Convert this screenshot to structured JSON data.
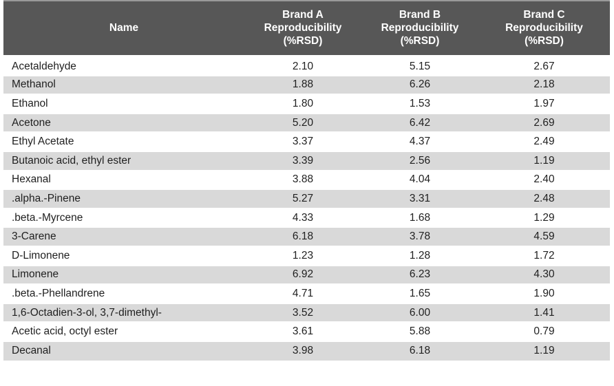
{
  "chart_data": {
    "type": "table",
    "columns": [
      {
        "label": "Name"
      },
      {
        "label": "Brand A\nReproducibility\n(%RSD)"
      },
      {
        "label": "Brand B\nReproducibility\n(%RSD)"
      },
      {
        "label": "Brand C\nReproducibility\n(%RSD)"
      }
    ],
    "rows": [
      {
        "name": "Acetaldehyde",
        "values": [
          "2.10",
          "5.15",
          "2.67"
        ]
      },
      {
        "name": "Methanol",
        "values": [
          "1.88",
          "6.26",
          "2.18"
        ]
      },
      {
        "name": "Ethanol",
        "values": [
          "1.80",
          "1.53",
          "1.97"
        ]
      },
      {
        "name": "Acetone",
        "values": [
          "5.20",
          "6.42",
          "2.69"
        ]
      },
      {
        "name": "Ethyl Acetate",
        "values": [
          "3.37",
          "4.37",
          "2.49"
        ]
      },
      {
        "name": "Butanoic acid, ethyl ester",
        "values": [
          "3.39",
          "2.56",
          "1.19"
        ]
      },
      {
        "name": "Hexanal",
        "values": [
          "3.88",
          "4.04",
          "2.40"
        ]
      },
      {
        "name": ".alpha.-Pinene",
        "values": [
          "5.27",
          "3.31",
          "2.48"
        ]
      },
      {
        "name": ".beta.-Myrcene",
        "values": [
          "4.33",
          "1.68",
          "1.29"
        ]
      },
      {
        "name": "3-Carene",
        "values": [
          "6.18",
          "3.78",
          "4.59"
        ]
      },
      {
        "name": "D-Limonene",
        "values": [
          "1.23",
          "1.28",
          "1.72"
        ]
      },
      {
        "name": "Limonene",
        "values": [
          "6.92",
          "6.23",
          "4.30"
        ]
      },
      {
        "name": ".beta.-Phellandrene",
        "values": [
          "4.71",
          "1.65",
          "1.90"
        ]
      },
      {
        "name": "1,6-Octadien-3-ol, 3,7-dimethyl-",
        "values": [
          "3.52",
          "6.00",
          "1.41"
        ]
      },
      {
        "name": "Acetic acid, octyl ester",
        "values": [
          "3.61",
          "5.88",
          "0.79"
        ]
      },
      {
        "name": "Decanal",
        "values": [
          "3.98",
          "6.18",
          "1.19"
        ]
      }
    ]
  },
  "colors": {
    "header_bg": "#575757",
    "header_text": "#ffffff",
    "stripe_bg": "#d9d9d9",
    "row_bg": "#ffffff",
    "body_text": "#1f1f1f",
    "top_border": "#9a9a9a",
    "page_bg": "#ffffff"
  }
}
